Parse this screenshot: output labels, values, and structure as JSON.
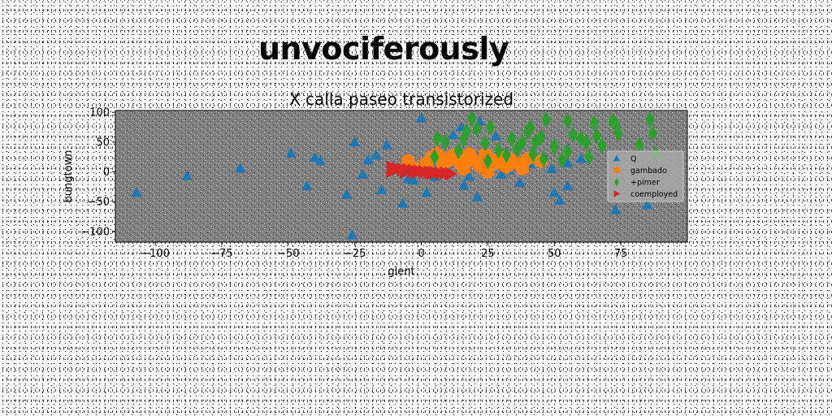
{
  "suptitle": "unvociferously",
  "chart_data": {
    "type": "scatter",
    "title": "X calla paseo transistorized",
    "xlabel": "glent",
    "ylabel": "bungtown",
    "xlim": [
      -115,
      100
    ],
    "ylim": [
      -118,
      103
    ],
    "xticks": [
      -100,
      -75,
      -50,
      -25,
      0,
      25,
      50,
      75
    ],
    "xtick_labels": [
      "−100",
      "−75",
      "−50",
      "−25",
      "0",
      "25",
      "50",
      "75"
    ],
    "yticks": [
      -100,
      -50,
      0,
      50,
      100
    ],
    "ytick_labels": [
      "−100",
      "−50",
      "0",
      "50",
      "100"
    ],
    "grid": false,
    "legend_position": "center-right",
    "plot_background": "#808080",
    "series": [
      {
        "name": "Q",
        "marker": "triangle-up",
        "color": "#1f77b4",
        "points": [
          [
            -107,
            -35
          ],
          [
            -88,
            -7
          ],
          [
            -68,
            6
          ],
          [
            -49,
            31
          ],
          [
            -40,
            24
          ],
          [
            -38,
            18
          ],
          [
            -43,
            -24
          ],
          [
            -25,
            50
          ],
          [
            -28,
            -38
          ],
          [
            -26,
            -106
          ],
          [
            -22,
            -4
          ],
          [
            -20,
            20
          ],
          [
            -17,
            28
          ],
          [
            -15,
            -30
          ],
          [
            -13,
            45
          ],
          [
            -7,
            -53
          ],
          [
            -5,
            -12
          ],
          [
            -3,
            -14
          ],
          [
            0,
            90
          ],
          [
            2,
            -35
          ],
          [
            5,
            -8
          ],
          [
            10,
            5
          ],
          [
            12,
            62
          ],
          [
            16,
            -23
          ],
          [
            15,
            75
          ],
          [
            18,
            -8
          ],
          [
            21,
            -42
          ],
          [
            22,
            85
          ],
          [
            28,
            60
          ],
          [
            30,
            -4
          ],
          [
            33,
            3
          ],
          [
            37,
            -18
          ],
          [
            41,
            13
          ],
          [
            49,
            5
          ],
          [
            50,
            -35
          ],
          [
            52,
            -48
          ],
          [
            55,
            -24
          ],
          [
            55,
            15
          ],
          [
            60,
            22
          ],
          [
            73,
            -64
          ],
          [
            85,
            -55
          ]
        ]
      },
      {
        "name": "gambado",
        "marker": "hexagon",
        "color": "#ff7f0e",
        "points": [
          [
            -5,
            18
          ],
          [
            -3,
            8
          ],
          [
            2,
            15
          ],
          [
            4,
            25
          ],
          [
            6,
            30
          ],
          [
            8,
            22
          ],
          [
            10,
            18
          ],
          [
            12,
            28
          ],
          [
            14,
            20
          ],
          [
            15,
            12
          ],
          [
            16,
            5
          ],
          [
            18,
            24
          ],
          [
            20,
            18
          ],
          [
            22,
            10
          ],
          [
            24,
            30
          ],
          [
            25,
            0
          ],
          [
            26,
            22
          ],
          [
            28,
            15
          ],
          [
            30,
            25
          ],
          [
            32,
            8
          ],
          [
            34,
            20
          ],
          [
            36,
            15
          ],
          [
            38,
            5
          ],
          [
            40,
            22
          ],
          [
            45,
            18
          ],
          [
            8,
            10
          ],
          [
            18,
            30
          ]
        ]
      },
      {
        "name": "+pimer",
        "marker": "thin-diamond",
        "color": "#2ca02c",
        "points": [
          [
            5,
            25
          ],
          [
            6,
            56
          ],
          [
            9,
            50
          ],
          [
            14,
            35
          ],
          [
            16,
            55
          ],
          [
            17,
            68
          ],
          [
            19,
            90
          ],
          [
            21,
            72
          ],
          [
            24,
            48
          ],
          [
            26,
            75
          ],
          [
            29,
            36
          ],
          [
            32,
            28
          ],
          [
            34,
            56
          ],
          [
            36,
            38
          ],
          [
            38,
            50
          ],
          [
            40,
            68
          ],
          [
            41,
            75
          ],
          [
            43,
            50
          ],
          [
            45,
            58
          ],
          [
            47,
            88
          ],
          [
            50,
            42
          ],
          [
            53,
            20
          ],
          [
            55,
            85
          ],
          [
            55,
            35
          ],
          [
            57,
            62
          ],
          [
            60,
            55
          ],
          [
            62,
            50
          ],
          [
            63,
            25
          ],
          [
            65,
            82
          ],
          [
            66,
            60
          ],
          [
            68,
            44
          ],
          [
            72,
            85
          ],
          [
            73,
            80
          ],
          [
            74,
            65
          ],
          [
            82,
            45
          ],
          [
            86,
            88
          ],
          [
            87,
            65
          ],
          [
            88,
            30
          ],
          [
            25,
            18
          ],
          [
            42,
            30
          ],
          [
            46,
            22
          ]
        ]
      },
      {
        "name": "coemployed",
        "marker": "triangle-right",
        "color": "#d62728",
        "points": [
          [
            -11,
            7
          ],
          [
            -9,
            5
          ],
          [
            -7,
            4
          ],
          [
            -5,
            3
          ],
          [
            -3,
            2
          ],
          [
            -1,
            1
          ],
          [
            1,
            0
          ],
          [
            3,
            -1
          ],
          [
            5,
            -1
          ],
          [
            7,
            -2
          ],
          [
            9,
            -2
          ],
          [
            11,
            -3
          ],
          [
            -11,
            2
          ],
          [
            -6,
            0
          ],
          [
            -2,
            -1
          ],
          [
            4,
            -2
          ]
        ]
      }
    ]
  }
}
